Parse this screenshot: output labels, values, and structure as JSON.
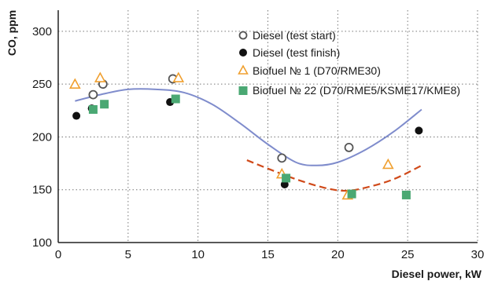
{
  "chart_data": {
    "type": "scatter",
    "xlabel": "Diesel power, kW",
    "ylabel": "CO, ppm",
    "xlim": [
      0,
      30
    ],
    "ylim": [
      100,
      320
    ],
    "xticks": [
      0,
      5,
      10,
      15,
      20,
      25,
      30
    ],
    "yticks": [
      100,
      150,
      200,
      250,
      300
    ],
    "grid": "dotted",
    "legend_position": "top-right",
    "series": [
      {
        "name": "Diesel (test start)",
        "marker": "open-circle",
        "color": "#555555",
        "points": [
          [
            2.5,
            240
          ],
          [
            3.2,
            250
          ],
          [
            8.2,
            255
          ],
          [
            16.0,
            180
          ],
          [
            20.8,
            190
          ]
        ]
      },
      {
        "name": "Diesel (test finish)",
        "marker": "filled-circle",
        "color": "#111111",
        "points": [
          [
            1.3,
            220
          ],
          [
            2.4,
            227
          ],
          [
            8.0,
            233
          ],
          [
            16.2,
            155
          ],
          [
            25.8,
            206
          ]
        ]
      },
      {
        "name": "Biofuel № 1 (D70/RME30)",
        "marker": "open-triangle",
        "color": "#f0a030",
        "points": [
          [
            1.2,
            250
          ],
          [
            3.0,
            256
          ],
          [
            8.6,
            256
          ],
          [
            16.0,
            165
          ],
          [
            20.7,
            145
          ],
          [
            23.6,
            174
          ]
        ]
      },
      {
        "name": "Biofuel № 22 (D70/RME5/KSME17/KME8)",
        "marker": "filled-square",
        "color": "#4aa873",
        "points": [
          [
            2.5,
            226
          ],
          [
            3.3,
            231
          ],
          [
            8.4,
            236
          ],
          [
            16.3,
            161
          ],
          [
            21.0,
            146
          ],
          [
            24.9,
            145
          ]
        ]
      }
    ],
    "trendlines": [
      {
        "style": "solid",
        "color": "#7f8ccc",
        "points": [
          [
            1.2,
            234
          ],
          [
            3,
            240
          ],
          [
            5,
            245
          ],
          [
            7,
            245
          ],
          [
            9,
            242
          ],
          [
            11,
            231
          ],
          [
            13,
            213
          ],
          [
            15,
            193
          ],
          [
            17,
            176
          ],
          [
            18.5,
            173
          ],
          [
            20,
            176
          ],
          [
            22,
            188
          ],
          [
            24,
            205
          ],
          [
            26,
            226
          ]
        ]
      },
      {
        "style": "dashed",
        "color": "#d04a1a",
        "points": [
          [
            13.5,
            178
          ],
          [
            15,
            170
          ],
          [
            17,
            160
          ],
          [
            19,
            152
          ],
          [
            20.5,
            149
          ],
          [
            22,
            152
          ],
          [
            24,
            160
          ],
          [
            26,
            173
          ]
        ]
      }
    ]
  }
}
